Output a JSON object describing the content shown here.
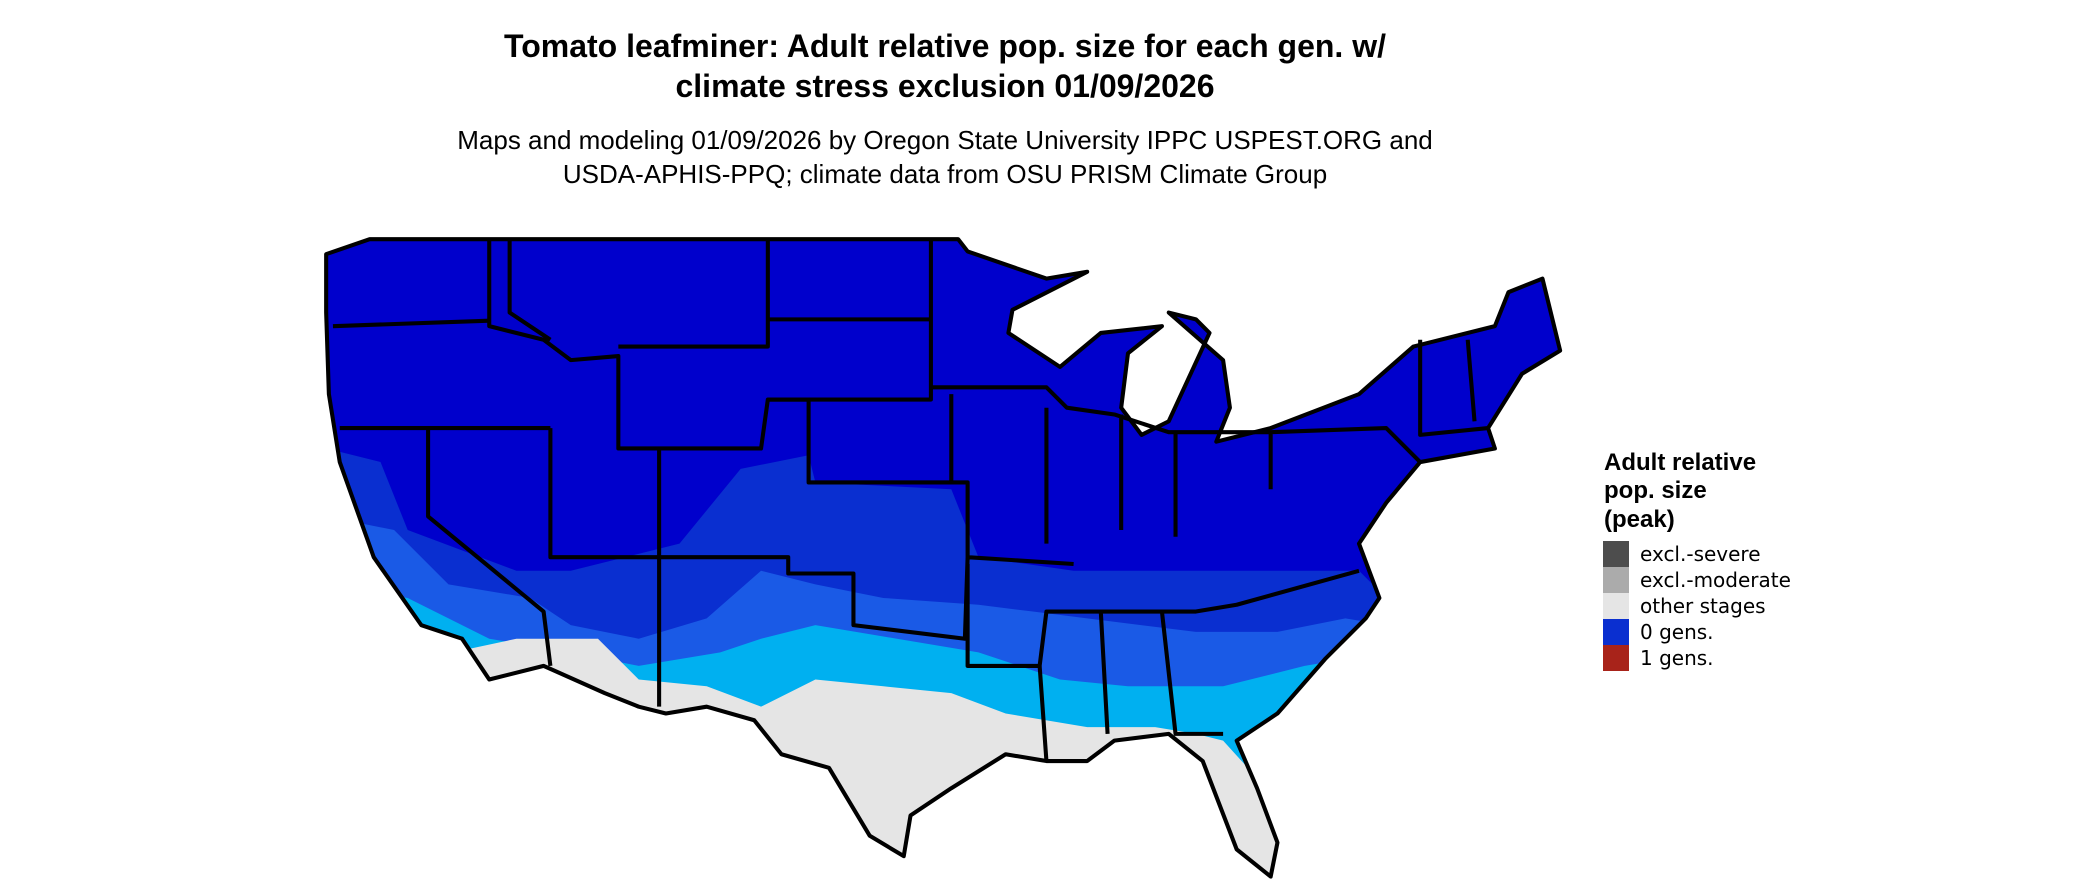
{
  "title": [
    "Tomato leafminer: Adult relative pop. size for each gen. w/",
    "climate stress exclusion 01/09/2026"
  ],
  "subtitle": [
    "Maps and modeling 01/09/2026 by Oregon State University IPPC USPEST.ORG and",
    "USDA-APHIS-PPQ; climate data from OSU PRISM Climate Group"
  ],
  "legend": {
    "title": [
      "Adult relative",
      "pop. size",
      "(peak)"
    ],
    "items": [
      {
        "label": "excl.-severe",
        "color": "#4d4d4d"
      },
      {
        "label": "excl.-moderate",
        "color": "#ababab"
      },
      {
        "label": "other stages",
        "color": "#e5e5e5"
      },
      {
        "label": "0 gens.",
        "color": "#0a2fd0"
      },
      {
        "label": "1 gens.",
        "color": "#a8231a"
      }
    ]
  }
}
